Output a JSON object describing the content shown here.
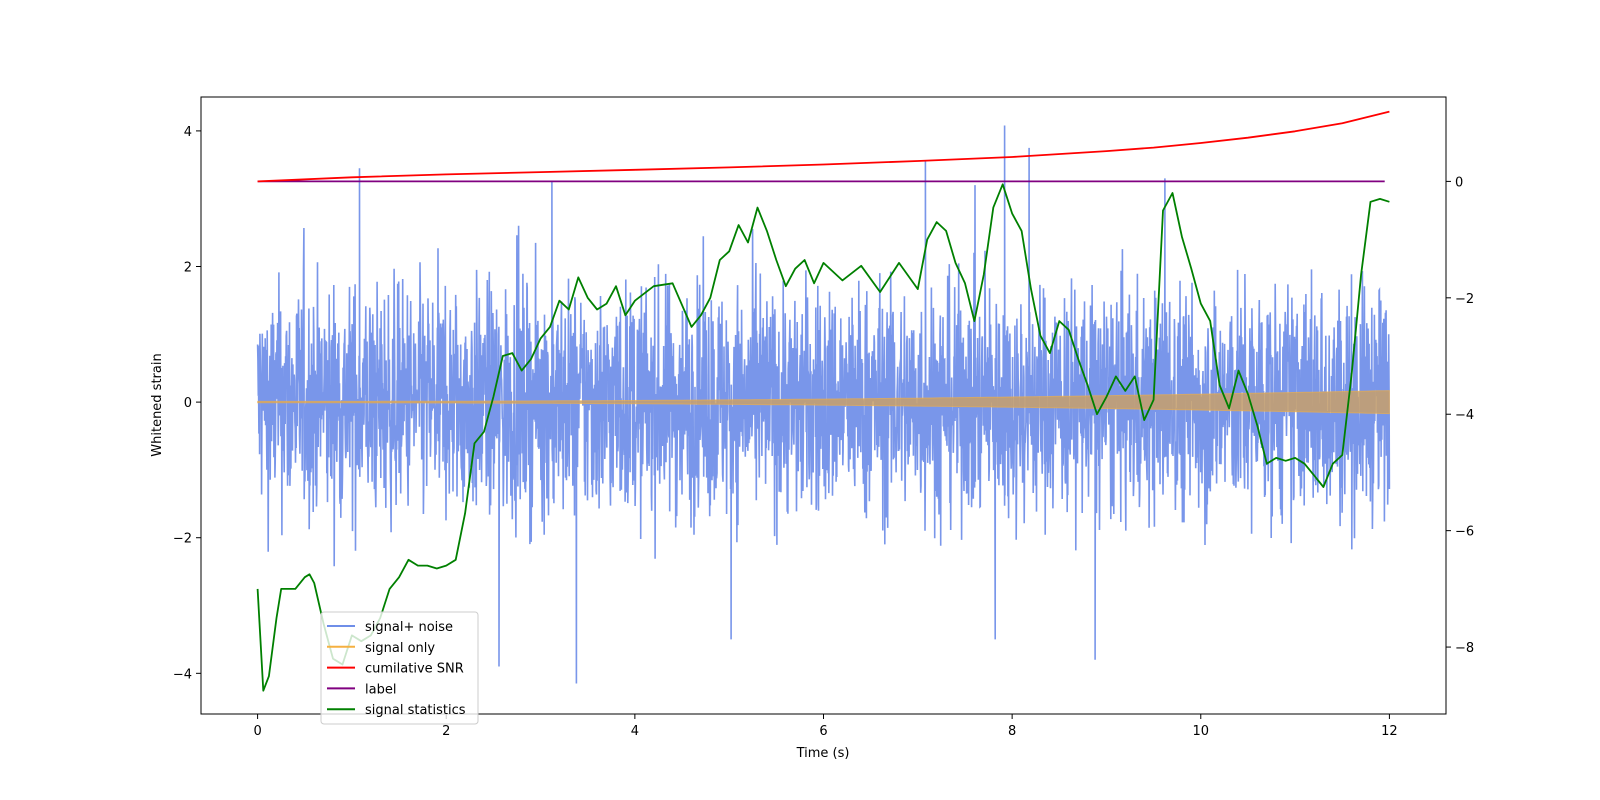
{
  "chart_data": {
    "type": "line",
    "title": "",
    "xlabel": "Time (s)",
    "ylabel": "Whitened strain",
    "y2label": "",
    "xlim": [
      -0.6,
      12.6
    ],
    "ylim": [
      -4.6,
      4.5
    ],
    "y2lim": [
      -9.15,
      1.45
    ],
    "x_ticks": [
      0,
      2,
      4,
      6,
      8,
      10,
      12
    ],
    "y_ticks": [
      -4,
      -2,
      0,
      2,
      4
    ],
    "y2_ticks": [
      -8,
      -6,
      -4,
      -2,
      0
    ],
    "grid": false,
    "legend_placement": "lower-left",
    "series": [
      {
        "name": "signal+ noise",
        "axis": "left",
        "color": "#6f8ee8",
        "x_range": [
          0,
          12
        ],
        "band_min": -2.5,
        "band_max": 2.5,
        "spikes": [
          {
            "x": 1.08,
            "y": 3.45
          },
          {
            "x": 3.12,
            "y": 3.25
          },
          {
            "x": 7.08,
            "y": 3.55
          },
          {
            "x": 7.92,
            "y": 4.08
          },
          {
            "x": 8.18,
            "y": 3.75
          },
          {
            "x": 9.62,
            "y": 3.3
          },
          {
            "x": 3.38,
            "y": -4.15
          },
          {
            "x": 2.56,
            "y": -3.9
          },
          {
            "x": 8.88,
            "y": -3.8
          },
          {
            "x": 5.02,
            "y": -3.5
          },
          {
            "x": 7.82,
            "y": -3.5
          }
        ]
      },
      {
        "name": "signal only",
        "axis": "left",
        "color": "#f5b041",
        "x_range": [
          0,
          12
        ],
        "amp_start": 0.01,
        "amp_end": 0.17
      },
      {
        "name": "cumilative SNR",
        "axis": "right",
        "color": "#ff0000",
        "x": [
          0,
          1,
          2,
          3,
          4,
          5,
          6,
          7,
          8,
          9,
          9.5,
          10,
          10.5,
          11,
          11.5,
          12
        ],
        "y": [
          0.0,
          0.07,
          0.12,
          0.16,
          0.2,
          0.24,
          0.29,
          0.35,
          0.42,
          0.52,
          0.58,
          0.66,
          0.75,
          0.86,
          1.0,
          1.2
        ]
      },
      {
        "name": "label",
        "axis": "right",
        "color": "#800080",
        "x": [
          0,
          11.95
        ],
        "y": [
          0,
          0
        ]
      },
      {
        "name": "signal statistics",
        "axis": "right",
        "color": "#008000",
        "x": [
          0,
          0.06,
          0.12,
          0.2,
          0.25,
          0.3,
          0.4,
          0.5,
          0.55,
          0.6,
          0.7,
          0.8,
          0.9,
          1.0,
          1.1,
          1.2,
          1.3,
          1.4,
          1.5,
          1.6,
          1.7,
          1.8,
          1.9,
          2.0,
          2.1,
          2.2,
          2.3,
          2.4,
          2.5,
          2.6,
          2.7,
          2.8,
          2.9,
          3.0,
          3.1,
          3.2,
          3.3,
          3.4,
          3.5,
          3.6,
          3.7,
          3.8,
          3.9,
          4.0,
          4.2,
          4.4,
          4.6,
          4.7,
          4.8,
          4.9,
          5.0,
          5.1,
          5.2,
          5.3,
          5.4,
          5.5,
          5.6,
          5.7,
          5.8,
          5.9,
          6.0,
          6.2,
          6.4,
          6.6,
          6.8,
          7.0,
          7.1,
          7.2,
          7.3,
          7.4,
          7.5,
          7.6,
          7.7,
          7.8,
          7.9,
          8.0,
          8.1,
          8.2,
          8.3,
          8.4,
          8.5,
          8.6,
          8.7,
          8.8,
          8.9,
          9.0,
          9.1,
          9.2,
          9.3,
          9.4,
          9.5,
          9.6,
          9.7,
          9.8,
          9.9,
          10.0,
          10.1,
          10.2,
          10.3,
          10.4,
          10.5,
          10.6,
          10.7,
          10.8,
          10.9,
          11.0,
          11.1,
          11.2,
          11.3,
          11.4,
          11.5,
          11.6,
          11.7,
          11.8,
          11.9,
          12.0
        ],
        "y": [
          -7.0,
          -8.75,
          -8.5,
          -7.5,
          -7.0,
          -7.0,
          -7.0,
          -6.8,
          -6.75,
          -6.9,
          -7.6,
          -8.2,
          -8.3,
          -7.8,
          -7.9,
          -7.8,
          -7.5,
          -7.0,
          -6.8,
          -6.5,
          -6.6,
          -6.6,
          -6.65,
          -6.6,
          -6.5,
          -5.7,
          -4.5,
          -4.3,
          -3.7,
          -3.0,
          -2.95,
          -3.25,
          -3.05,
          -2.7,
          -2.5,
          -2.05,
          -2.2,
          -1.65,
          -2.0,
          -2.2,
          -2.1,
          -1.8,
          -2.3,
          -2.05,
          -1.8,
          -1.75,
          -2.5,
          -2.3,
          -2.0,
          -1.35,
          -1.2,
          -0.75,
          -1.05,
          -0.45,
          -0.85,
          -1.35,
          -1.8,
          -1.5,
          -1.35,
          -1.75,
          -1.4,
          -1.7,
          -1.45,
          -1.9,
          -1.4,
          -1.85,
          -1.0,
          -0.7,
          -0.85,
          -1.4,
          -1.75,
          -2.4,
          -1.6,
          -0.45,
          -0.05,
          -0.55,
          -0.85,
          -1.85,
          -2.65,
          -2.95,
          -2.4,
          -2.55,
          -3.05,
          -3.5,
          -4.0,
          -3.7,
          -3.35,
          -3.6,
          -3.35,
          -4.1,
          -3.75,
          -0.5,
          -0.2,
          -0.95,
          -1.5,
          -2.1,
          -2.4,
          -3.5,
          -3.9,
          -3.25,
          -3.65,
          -4.2,
          -4.85,
          -4.75,
          -4.8,
          -4.75,
          -4.85,
          -5.05,
          -5.25,
          -4.85,
          -4.7,
          -3.3,
          -1.6,
          -0.35,
          -0.3,
          -0.35
        ]
      }
    ]
  }
}
